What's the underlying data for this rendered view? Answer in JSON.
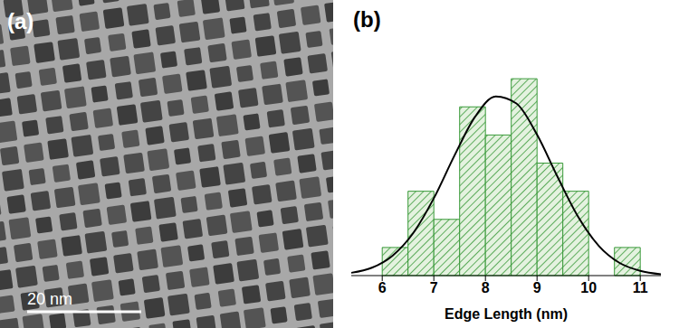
{
  "image_panel": {
    "label": "(a)",
    "scale_bar": "20 nm"
  },
  "chart_data": {
    "panel_label": "(b)",
    "type": "histogram",
    "x_label": "Edge Length (nm)",
    "bins": [
      6,
      6.5,
      7,
      7.5,
      8,
      8.5,
      9,
      9.5,
      10,
      10.5,
      11
    ],
    "values": [
      1,
      3,
      2,
      6,
      5,
      7,
      4,
      3,
      0,
      1
    ],
    "color": "#3a9a3a",
    "fit": {
      "type": "line",
      "x": [
        5.4,
        5.8,
        6.2,
        6.6,
        7.0,
        7.4,
        7.8,
        8.2,
        8.6,
        9.0,
        9.4,
        9.8,
        10.2,
        10.6,
        11.0,
        11.4
      ],
      "values": [
        0.1,
        0.28,
        0.71,
        1.51,
        2.75,
        4.27,
        5.65,
        6.37,
        6.12,
        5.01,
        3.5,
        2.08,
        1.05,
        0.45,
        0.17,
        0.05
      ],
      "color": "#000000"
    },
    "xlim": [
      5.4,
      11.4
    ],
    "xticks": [
      6,
      7,
      8,
      9,
      10,
      11
    ],
    "ylim": [
      0,
      8
    ],
    "tick_labels": "x",
    "grid": false
  }
}
